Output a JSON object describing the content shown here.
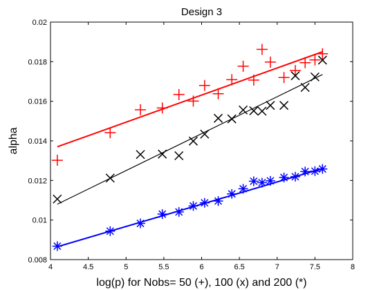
{
  "chart_data": {
    "type": "scatter",
    "title": "Design 3",
    "xlabel": "log(p) for Nobs= 50 (+), 100 (x) and 200 (*)",
    "ylabel": "alpha",
    "xlim": [
      4,
      8
    ],
    "ylim": [
      0.008,
      0.02
    ],
    "xticks": [
      4,
      4.5,
      5,
      5.5,
      6,
      6.5,
      7,
      7.5,
      8
    ],
    "xtick_labels": [
      "4",
      "4.5",
      "5",
      "5.5",
      "6",
      "6.5",
      "7",
      "7.5",
      "8"
    ],
    "yticks": [
      0.008,
      0.01,
      0.012,
      0.014,
      0.016,
      0.018,
      0.02
    ],
    "ytick_labels": [
      "0.008",
      "0.01",
      "0.012",
      "0.014",
      "0.016",
      "0.018",
      "0.02"
    ],
    "grid": false,
    "series": [
      {
        "marker": "plus",
        "color": "#ff0000",
        "points": [
          [
            4.09,
            0.01302
          ],
          [
            4.79,
            0.01441
          ],
          [
            5.19,
            0.01557
          ],
          [
            5.48,
            0.01566
          ],
          [
            5.7,
            0.01634
          ],
          [
            5.89,
            0.01601
          ],
          [
            6.04,
            0.0168
          ],
          [
            6.22,
            0.01638
          ],
          [
            6.4,
            0.01709
          ],
          [
            6.55,
            0.01777
          ],
          [
            6.69,
            0.01707
          ],
          [
            6.8,
            0.01862
          ],
          [
            6.91,
            0.01798
          ],
          [
            7.09,
            0.0172
          ],
          [
            7.24,
            0.01755
          ],
          [
            7.37,
            0.01795
          ],
          [
            7.5,
            0.01809
          ],
          [
            7.6,
            0.0184
          ]
        ],
        "fit": [
          [
            4.09,
            0.0137
          ],
          [
            7.6,
            0.0185
          ]
        ]
      },
      {
        "marker": "x",
        "color": "#000000",
        "points": [
          [
            4.09,
            0.01106
          ],
          [
            4.79,
            0.01212
          ],
          [
            5.19,
            0.01331
          ],
          [
            5.48,
            0.01333
          ],
          [
            5.7,
            0.01325
          ],
          [
            5.89,
            0.01399
          ],
          [
            6.04,
            0.01434
          ],
          [
            6.22,
            0.01514
          ],
          [
            6.4,
            0.01511
          ],
          [
            6.55,
            0.01556
          ],
          [
            6.69,
            0.01552
          ],
          [
            6.8,
            0.0155
          ],
          [
            6.91,
            0.01579
          ],
          [
            7.09,
            0.01579
          ],
          [
            7.24,
            0.01729
          ],
          [
            7.37,
            0.0167
          ],
          [
            7.5,
            0.01723
          ],
          [
            7.6,
            0.01808
          ]
        ],
        "fit": [
          [
            4.09,
            0.0108
          ],
          [
            7.6,
            0.01735
          ]
        ]
      },
      {
        "marker": "asterisk",
        "color": "#0000ff",
        "points": [
          [
            4.09,
            0.00868
          ],
          [
            4.79,
            0.00944
          ],
          [
            5.19,
            0.00983
          ],
          [
            5.48,
            0.0103
          ],
          [
            5.7,
            0.01041
          ],
          [
            5.89,
            0.01071
          ],
          [
            6.04,
            0.01087
          ],
          [
            6.22,
            0.01096
          ],
          [
            6.4,
            0.01132
          ],
          [
            6.55,
            0.01158
          ],
          [
            6.69,
            0.01196
          ],
          [
            6.8,
            0.01189
          ],
          [
            6.91,
            0.01198
          ],
          [
            7.09,
            0.01215
          ],
          [
            7.24,
            0.01219
          ],
          [
            7.37,
            0.01245
          ],
          [
            7.5,
            0.01247
          ],
          [
            7.6,
            0.01258
          ]
        ],
        "fit": [
          [
            4.09,
            0.00865
          ],
          [
            7.6,
            0.0126
          ]
        ]
      }
    ]
  }
}
